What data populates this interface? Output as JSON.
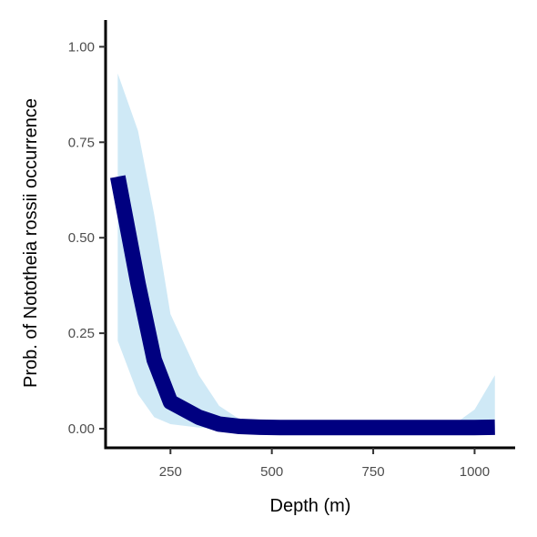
{
  "chart_data": {
    "type": "line",
    "xlabel": "Depth (m)",
    "ylabel": "Prob. of  Nototheia rossii  occurrence",
    "xlim": [
      90,
      1100
    ],
    "ylim": [
      -0.05,
      1.07
    ],
    "xticks": [
      250,
      500,
      750,
      1000
    ],
    "xtick_labels": [
      "250",
      "500",
      "750",
      "1000"
    ],
    "yticks": [
      0,
      0.25,
      0.5,
      0.75,
      1.0
    ],
    "ytick_labels": [
      "0.00",
      "0.25",
      "0.50",
      "0.75",
      "1.00"
    ],
    "grid": false,
    "line_color": "#000080",
    "band_color": "#cfe9f6",
    "series": [
      {
        "x": [
          120,
          170,
          210,
          250,
          320,
          370,
          420,
          470,
          520,
          600,
          700,
          800,
          900,
          950,
          1000,
          1050
        ],
        "y": [
          0.66,
          0.38,
          0.18,
          0.07,
          0.03,
          0.012,
          0.006,
          0.004,
          0.003,
          0.003,
          0.003,
          0.003,
          0.003,
          0.003,
          0.003,
          0.004
        ],
        "lower": [
          0.23,
          0.09,
          0.03,
          0.012,
          0.003,
          0.001,
          0.0,
          0.0,
          0.0,
          0.0,
          0.0,
          0.0,
          0.0,
          0.0,
          0.0,
          0.0
        ],
        "upper": [
          0.93,
          0.78,
          0.56,
          0.3,
          0.14,
          0.06,
          0.025,
          0.015,
          0.012,
          0.01,
          0.01,
          0.01,
          0.01,
          0.012,
          0.05,
          0.14
        ]
      }
    ]
  }
}
